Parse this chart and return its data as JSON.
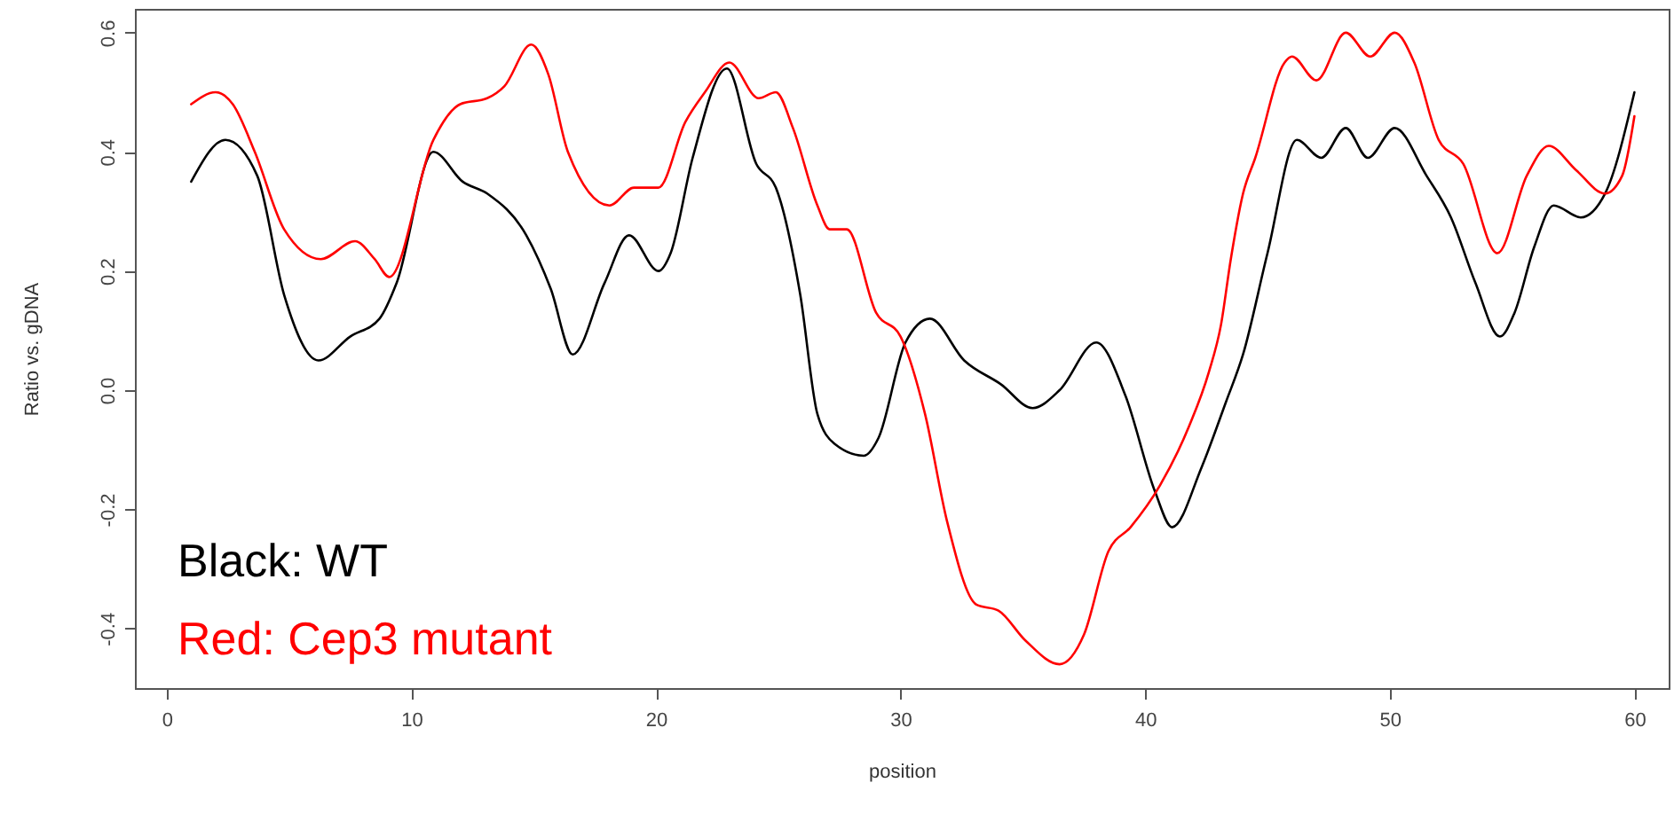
{
  "chart_data": {
    "type": "line",
    "xlabel": "position",
    "ylabel": "Ratio vs. gDNA",
    "xlim": [
      -1.3,
      61.4
    ],
    "ylim": [
      -0.5,
      0.64
    ],
    "xticks": [
      0,
      10,
      20,
      30,
      40,
      50,
      60
    ],
    "yticks": [
      -0.4,
      -0.2,
      {
        "value": 0,
        "label": "0.0"
      },
      0.2,
      0.4,
      0.6
    ],
    "legend": "bottom left",
    "series": [
      {
        "name": "Black: WT",
        "color": "#000000",
        "x": [
          1.0,
          2.4,
          3.7,
          4.8,
          6.2,
          7.5,
          8.7,
          9.4,
          10.9,
          12.1,
          13.1,
          14.7,
          15.7,
          16.6,
          17.9,
          18.9,
          20.1,
          20.6,
          21.5,
          22.9,
          24.1,
          24.9,
          25.9,
          26.6,
          27.3,
          28.5,
          29.1,
          30.2,
          31.2,
          32.6,
          34.1,
          35.4,
          36.5,
          38.0,
          39.2,
          40.4,
          41.1,
          42.3,
          43.3,
          44.0,
          45.0,
          46.2,
          47.2,
          48.2,
          49.1,
          50.2,
          51.5,
          52.5,
          53.5,
          54.5,
          55.1,
          55.9,
          56.7,
          57.8,
          58.8,
          60.0
        ],
        "values": [
          0.35,
          0.42,
          0.36,
          0.16,
          0.05,
          0.09,
          0.12,
          0.18,
          0.4,
          0.35,
          0.33,
          0.26,
          0.17,
          0.06,
          0.18,
          0.26,
          0.2,
          0.23,
          0.39,
          0.54,
          0.38,
          0.34,
          0.16,
          -0.04,
          -0.09,
          -0.11,
          -0.08,
          0.08,
          0.12,
          0.05,
          0.01,
          -0.03,
          0.0,
          0.08,
          -0.01,
          -0.17,
          -0.23,
          -0.13,
          -0.02,
          0.06,
          0.23,
          0.42,
          0.39,
          0.44,
          0.39,
          0.44,
          0.36,
          0.29,
          0.18,
          0.09,
          0.13,
          0.24,
          0.31,
          0.29,
          0.33,
          0.5
        ]
      },
      {
        "name": "Red: Cep3 mutant",
        "color": "#ff0000",
        "x": [
          1.0,
          2.0,
          2.7,
          3.6,
          4.8,
          6.3,
          7.7,
          8.5,
          9.1,
          10.9,
          12.0,
          13.1,
          13.8,
          14.9,
          15.6,
          16.4,
          18.1,
          19.1,
          20.1,
          21.2,
          22.0,
          23.0,
          24.2,
          24.9,
          25.6,
          26.6,
          27.1,
          27.8,
          29.0,
          30.0,
          31.0,
          31.9,
          33.1,
          34.0,
          35.1,
          36.5,
          37.5,
          38.5,
          39.4,
          40.6,
          41.8,
          42.6,
          43.1,
          43.5,
          44.0,
          44.5,
          45.7,
          46.0,
          47.0,
          48.2,
          49.2,
          50.2,
          51.0,
          52.0,
          53.0,
          54.4,
          55.6,
          56.5,
          57.6,
          58.8,
          59.5,
          60.0
        ],
        "values": [
          0.48,
          0.5,
          0.48,
          0.4,
          0.27,
          0.22,
          0.25,
          0.22,
          0.19,
          0.42,
          0.48,
          0.49,
          0.51,
          0.58,
          0.53,
          0.4,
          0.31,
          0.34,
          0.34,
          0.45,
          0.5,
          0.55,
          0.49,
          0.5,
          0.44,
          0.31,
          0.27,
          0.27,
          0.13,
          0.09,
          -0.04,
          -0.22,
          -0.36,
          -0.37,
          -0.42,
          -0.46,
          -0.41,
          -0.27,
          -0.23,
          -0.16,
          -0.06,
          0.03,
          0.11,
          0.22,
          0.33,
          0.39,
          0.55,
          0.56,
          0.52,
          0.6,
          0.56,
          0.6,
          0.55,
          0.42,
          0.38,
          0.23,
          0.36,
          0.41,
          0.37,
          0.33,
          0.36,
          0.46
        ]
      }
    ]
  }
}
